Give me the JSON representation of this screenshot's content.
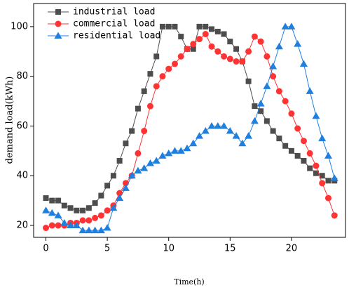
{
  "chart_data": {
    "type": "line",
    "x": [
      0,
      0.5,
      1,
      1.5,
      2,
      2.5,
      3,
      3.5,
      4,
      4.5,
      5,
      5.5,
      6,
      6.5,
      7,
      7.5,
      8,
      8.5,
      9,
      9.5,
      10,
      10.5,
      11,
      11.5,
      12,
      12.5,
      13,
      13.5,
      14,
      14.5,
      15,
      15.5,
      16,
      16.5,
      17,
      17.5,
      18,
      18.5,
      19,
      19.5,
      20,
      20.5,
      21,
      21.5,
      22,
      22.5,
      23,
      23.5
    ],
    "series": [
      {
        "name": "industrial load",
        "color": "#4d4d4d",
        "marker": "square",
        "values": [
          31,
          30,
          30,
          28,
          27,
          26,
          26,
          27,
          29,
          32,
          36,
          40,
          46,
          53,
          58,
          67,
          74,
          81,
          88,
          100,
          100,
          100,
          96,
          91,
          91,
          100,
          100,
          99,
          98,
          97,
          94,
          91,
          86,
          78,
          68,
          66,
          62,
          58,
          55,
          52,
          50,
          48,
          46,
          43,
          41,
          40,
          38,
          38
        ]
      },
      {
        "name": "commercial load",
        "color": "#ff3333",
        "marker": "circle",
        "values": [
          19,
          20,
          20,
          20,
          21,
          21,
          22,
          22,
          23,
          24,
          26,
          28,
          33,
          37,
          40,
          49,
          58,
          68,
          76,
          80,
          83,
          85,
          88,
          91,
          93,
          95,
          97,
          92,
          90,
          88,
          87,
          86,
          86,
          90,
          96,
          94,
          88,
          80,
          74,
          70,
          65,
          59,
          54,
          49,
          44,
          37,
          31,
          24
        ]
      },
      {
        "name": "residential load",
        "color": "#1f7fdf",
        "marker": "triangle",
        "values": [
          26,
          25,
          24,
          21,
          20,
          20,
          18,
          18,
          18,
          18,
          19,
          27,
          31,
          35,
          40,
          42,
          43,
          45,
          46,
          48,
          49,
          50,
          50,
          51,
          53,
          56,
          58,
          60,
          60,
          60,
          58,
          56,
          53,
          56,
          62,
          69,
          76,
          84,
          92,
          100,
          100,
          93,
          85,
          74,
          64,
          55,
          48,
          39
        ]
      }
    ],
    "xlabel": "Time(h)",
    "ylabel": "demand load(kWh)",
    "xlim": [
      -1,
      24.4
    ],
    "ylim": [
      15.2,
      109.3
    ],
    "xticks": [
      0,
      5,
      10,
      15,
      20
    ],
    "yticks": [
      20,
      40,
      60,
      80,
      100
    ],
    "legend": "upper-left",
    "grid": false
  }
}
